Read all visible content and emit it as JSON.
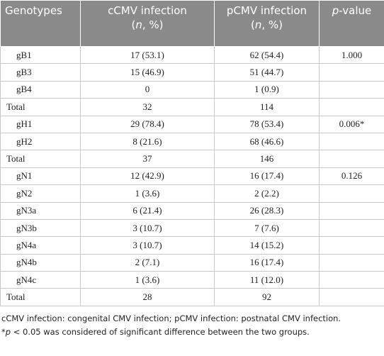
{
  "table": {
    "header": [
      {
        "lines": [
          [
            {
              "text": "Genotypes"
            }
          ]
        ]
      },
      {
        "lines": [
          [
            {
              "text": "cCMV infection"
            }
          ],
          [
            {
              "text": "("
            },
            {
              "text": "n",
              "italic": true
            },
            {
              "text": ", %)"
            }
          ]
        ]
      },
      {
        "lines": [
          [
            {
              "text": "pCMV infection"
            }
          ],
          [
            {
              "text": "("
            },
            {
              "text": "n",
              "italic": true
            },
            {
              "text": ", %)"
            }
          ]
        ]
      },
      {
        "lines": [
          [
            {
              "text": "p",
              "italic": true
            },
            {
              "text": "-value"
            }
          ]
        ]
      }
    ],
    "rows": [
      [
        "gB1",
        "17 (53.1)",
        "62 (54.4)",
        "1.000"
      ],
      [
        "gB3",
        "15 (46.9)",
        "51 (44.7)",
        null
      ],
      [
        "gB4",
        "0",
        "1 (0.9)",
        null
      ],
      [
        "Total",
        "32",
        "114",
        null
      ],
      [
        "gH1",
        "29 (78.4)",
        "78 (53.4)",
        "0.006*"
      ],
      [
        "gH2",
        "8 (21.6)",
        "68 (46.6)",
        null
      ],
      [
        "Total",
        "37",
        "146",
        null
      ],
      [
        "gN1",
        "12 (42.9)",
        "16 (17.4)",
        "0.126"
      ],
      [
        "gN2",
        "1 (3.6)",
        "2 (2.2)",
        null
      ],
      [
        "gN3a",
        "6 (21.4)",
        "26 (28.3)",
        null
      ],
      [
        "gN3b",
        "3 (10.7)",
        "7 (7.6)",
        null
      ],
      [
        "gN4a",
        "3 (10.7)",
        "14 (15.2)",
        null
      ],
      [
        "gN4b",
        "2 (7.1)",
        "16 (17.4)",
        null
      ],
      [
        "gN4c",
        "1 (3.6)",
        "11 (12.0)",
        null
      ],
      [
        "Total",
        "28",
        "92",
        null
      ]
    ]
  },
  "footnotes": [
    [
      {
        "text": "cCMV infection: congenital CMV infection; pCMV infection: postnatal CMV infection."
      }
    ],
    [
      {
        "text": "*"
      },
      {
        "text": "p",
        "italic": true
      },
      {
        "text": " < 0.05 was considered of significant difference between the two groups."
      }
    ]
  ]
}
